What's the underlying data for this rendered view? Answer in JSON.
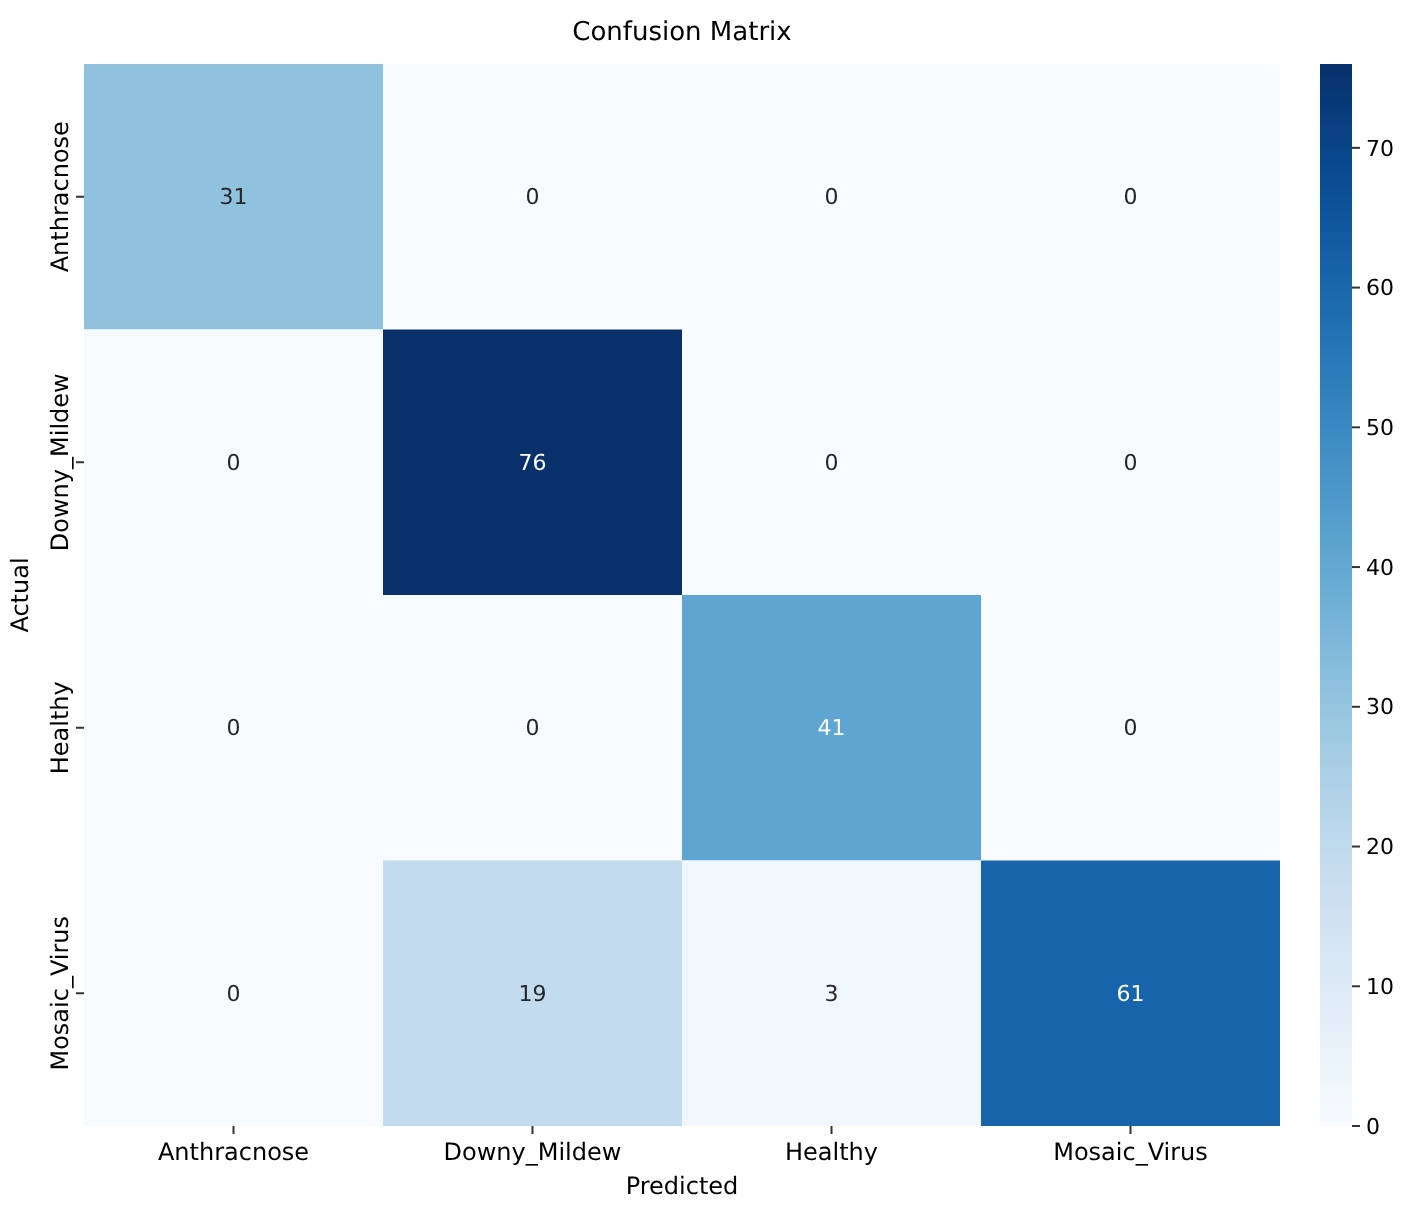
{
  "chart_data": {
    "type": "heatmap",
    "title": "Confusion Matrix",
    "xlabel": "Predicted",
    "ylabel": "Actual",
    "categories": [
      "Anthracnose",
      "Downy_Mildew",
      "Healthy",
      "Mosaic_Virus"
    ],
    "y_categories": [
      "Anthracnose",
      "Downy_Mildew",
      "Healthy",
      "Mosaic_Virus"
    ],
    "cells": [
      [
        31,
        0,
        0,
        0
      ],
      [
        0,
        76,
        0,
        0
      ],
      [
        0,
        0,
        41,
        0
      ],
      [
        0,
        19,
        3,
        61
      ]
    ],
    "clim": [
      0,
      76
    ],
    "cticks": [
      0,
      10,
      20,
      30,
      40,
      50,
      60,
      70
    ],
    "data_labels": true
  }
}
